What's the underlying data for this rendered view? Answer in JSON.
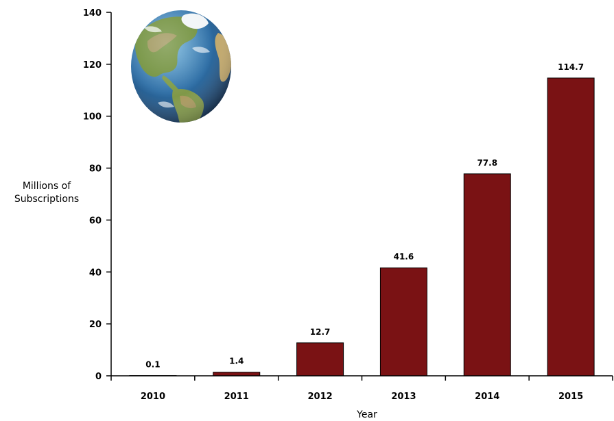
{
  "chart_data": {
    "type": "bar",
    "title": "",
    "xlabel": "Year",
    "ylabel": [
      "Millions of",
      "Subscriptions"
    ],
    "categories": [
      "2010",
      "2011",
      "2012",
      "2013",
      "2014",
      "2015"
    ],
    "values": [
      0.1,
      1.4,
      12.7,
      41.6,
      77.8,
      114.7
    ],
    "data_labels": [
      "0.1",
      "1.4",
      "12.7",
      "41.6",
      "77.8",
      "114.7"
    ],
    "ylim": [
      0,
      140
    ],
    "yticks": [
      0,
      20,
      40,
      60,
      80,
      100,
      120,
      140
    ],
    "ytick_labels": [
      "0",
      "20",
      "40",
      "60",
      "80",
      "100",
      "120",
      "140"
    ],
    "grid": false,
    "legend": "none",
    "bar_color": "#7a1214",
    "bar_edge_color": "#000000",
    "decoration_icon": "globe-icon"
  }
}
